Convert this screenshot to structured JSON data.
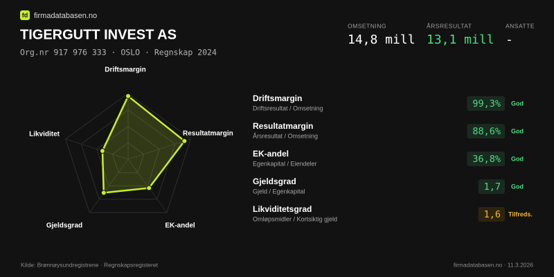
{
  "header": {
    "logo_mark": "fd",
    "site": "firmadatabasen.no",
    "title": "TIGERGUTT INVEST AS",
    "subtitle": "Org.nr 917 976 333 · OSLO · Regnskap 2024"
  },
  "kpis": [
    {
      "label": "OMSETNING",
      "value": "14,8 mill",
      "color": "#ffffff"
    },
    {
      "label": "ÅRSRESULTAT",
      "value": "13,1 mill",
      "color": "#4ade80"
    },
    {
      "label": "ANSATTE",
      "value": "-",
      "color": "#ffffff"
    }
  ],
  "chart_data": {
    "type": "radar",
    "categories": [
      "Driftsmargin",
      "Resultatmargin",
      "EK-andel",
      "Gjeldsgrad",
      "Likviditet"
    ],
    "values": [
      0.96,
      0.9,
      0.54,
      0.63,
      0.41
    ],
    "color": "#c8ef2a",
    "rlim": [
      0,
      1
    ],
    "rticks": [
      0.25,
      0.5,
      0.75,
      1
    ],
    "grid": true
  },
  "metrics": [
    {
      "name": "Driftsmargin",
      "formula": "Driftsresultat / Omsetning",
      "value": "99,3%",
      "status": "God",
      "color": "#4ade80"
    },
    {
      "name": "Resultatmargin",
      "formula": "Årsresultat / Omsetning",
      "value": "88,6%",
      "status": "God",
      "color": "#4ade80"
    },
    {
      "name": "EK-andel",
      "formula": "Egenkapital / Eiendeler",
      "value": "36,8%",
      "status": "God",
      "color": "#4ade80"
    },
    {
      "name": "Gjeldsgrad",
      "formula": "Gjeld / Egenkapital",
      "value": "1,7",
      "status": "God",
      "color": "#4ade80"
    },
    {
      "name": "Likviditetsgrad",
      "formula": "Omløpsmidler / Kortsiktig gjeld",
      "value": "1,6",
      "status": "Tilfreds.",
      "color": "#f5b731"
    }
  ],
  "footer": {
    "source": "Kilde: Brønnøysundregistrene · Regnskapsregisteret",
    "credit": "firmadatabasen.no · 11.3.2026"
  }
}
